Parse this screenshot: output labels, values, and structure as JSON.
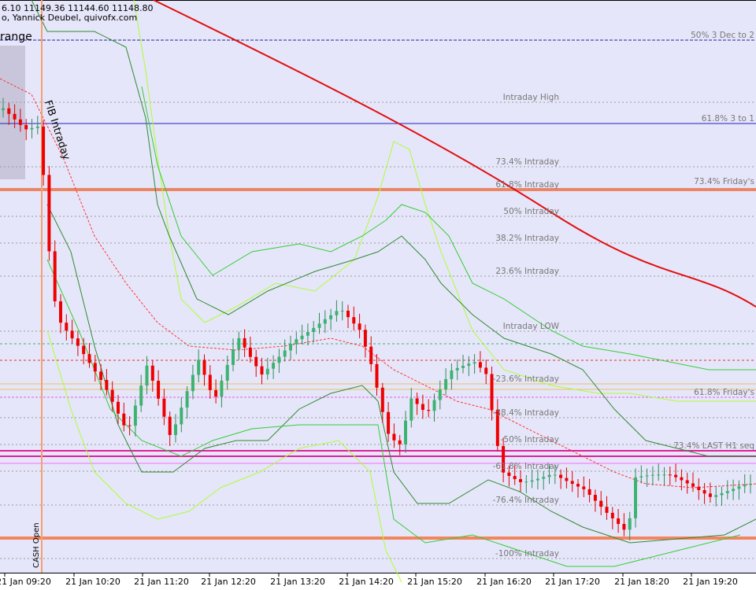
{
  "header": {
    "prices": "6.10 11149.36 11144.60 11148.80",
    "author": "o, Yannick Deubel, quivofx.com",
    "range": "range"
  },
  "annotations": {
    "fib": "FIB Intraday",
    "cash": "CASH Open"
  },
  "levels": [
    {
      "label": "50%  3 Dec to 2"
    },
    {
      "label": "Intraday High"
    },
    {
      "label": "61.8% 3 to 1"
    },
    {
      "label": "73.4%  Intraday"
    },
    {
      "label": "73.4%  Friday's"
    },
    {
      "label": "61.8%  Intraday"
    },
    {
      "label": "50%  Intraday"
    },
    {
      "label": "38.2%  Intraday"
    },
    {
      "label": "23.6%  Intraday"
    },
    {
      "label": "Intraday LOW"
    },
    {
      "label": "-23.6%  Intraday"
    },
    {
      "label": "61.8%  Friday's"
    },
    {
      "label": "-38.4%  Intraday"
    },
    {
      "label": "-50%  Intraday"
    },
    {
      "label": "73.4%  LAST H1 seq"
    },
    {
      "label": "-61.8%  Intraday"
    },
    {
      "label": "-76.4%  Intraday"
    },
    {
      "label": "-100%  Intraday"
    }
  ],
  "time_axis": [
    "21 Jan 09:20",
    "21 Jan 10:20",
    "21 Jan 11:20",
    "21 Jan 12:20",
    "21 Jan 13:20",
    "21 Jan 14:20",
    "21 Jan 15:20",
    "21 Jan 16:20",
    "21 Jan 17:20",
    "21 Jan 18:20",
    "21 Jan 19:20"
  ]
}
